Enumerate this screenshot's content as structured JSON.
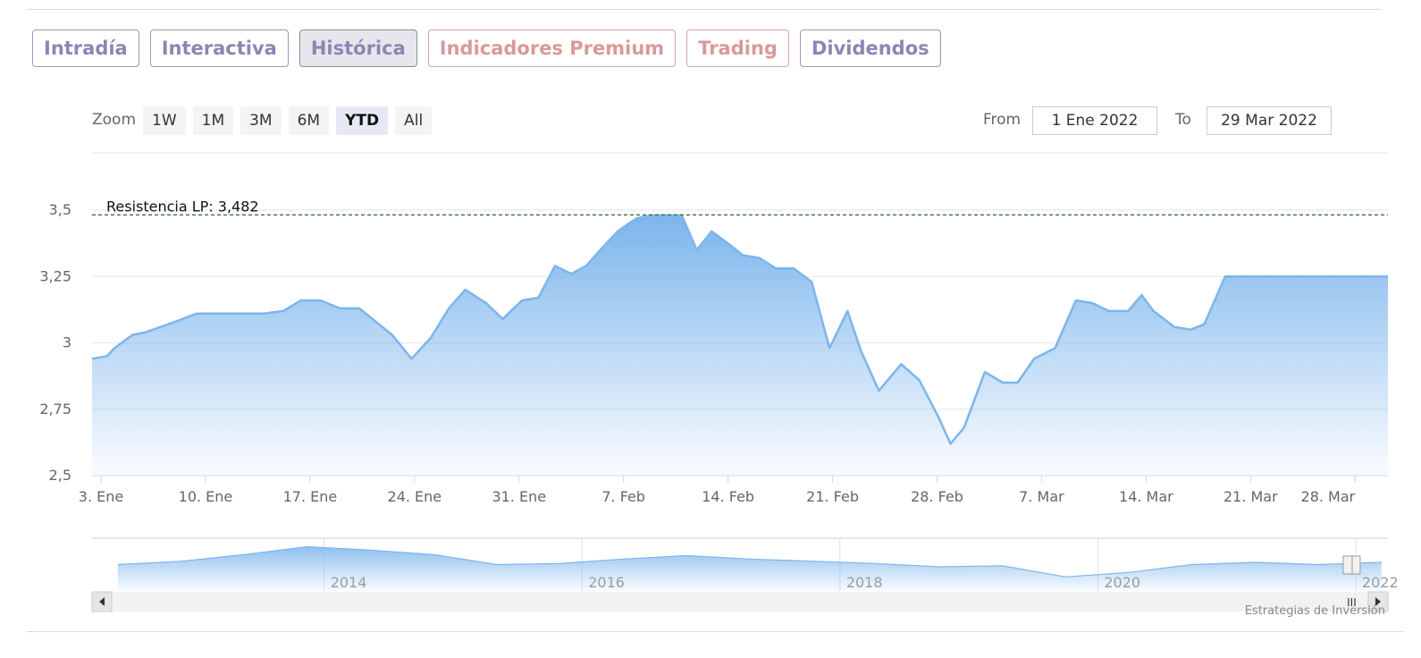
{
  "tabs": [
    {
      "label": "Intradía",
      "state": "normal"
    },
    {
      "label": "Interactiva",
      "state": "normal"
    },
    {
      "label": "Histórica",
      "state": "active"
    },
    {
      "label": "Indicadores Premium",
      "state": "premium"
    },
    {
      "label": "Trading",
      "state": "premium"
    },
    {
      "label": "Dividendos",
      "state": "normal"
    }
  ],
  "range_selector": {
    "zoom_label": "Zoom",
    "buttons": [
      "1W",
      "1M",
      "3M",
      "6M",
      "YTD",
      "All"
    ],
    "active_button": "YTD",
    "from_label": "From",
    "from_value": "1 Ene 2022",
    "to_label": "To",
    "to_value": "29 Mar 2022"
  },
  "colors": {
    "area_stroke": "#7cb5ec",
    "area_fill_top": "#7cb5ec",
    "resistance_line": "#2a6a2a",
    "tab_text": "#8b86b3",
    "tab_premium_text": "#d89a98"
  },
  "chart_data": {
    "type": "area",
    "title": "",
    "xlabel": "",
    "ylabel": "",
    "ylim": [
      2.5,
      3.5
    ],
    "yticks": [
      2.5,
      2.75,
      3,
      3.25,
      3.5
    ],
    "ytick_labels": [
      "2,5",
      "2,75",
      "3",
      "3,25",
      "3,5"
    ],
    "xticks": [
      {
        "label": "3. Ene",
        "day": 3
      },
      {
        "label": "10. Ene",
        "day": 10
      },
      {
        "label": "17. Ene",
        "day": 17
      },
      {
        "label": "24. Ene",
        "day": 24
      },
      {
        "label": "31. Ene",
        "day": 31
      },
      {
        "label": "7. Feb",
        "day": 38
      },
      {
        "label": "14. Feb",
        "day": 45
      },
      {
        "label": "21. Feb",
        "day": 52
      },
      {
        "label": "28. Feb",
        "day": 59
      },
      {
        "label": "7. Mar",
        "day": 66
      },
      {
        "label": "14. Mar",
        "day": 73
      },
      {
        "label": "21. Mar",
        "day": 80
      },
      {
        "label": "28. Mar",
        "day": 87
      }
    ],
    "x_domain": [
      2.4,
      89.2
    ],
    "series": [
      {
        "x": [
          2.4,
          3.4,
          3.9,
          5.1,
          6.0,
          7.0,
          8.0,
          9.4,
          10.4,
          11.7,
          12.7,
          13.9,
          15.2,
          16.4,
          17.7,
          19.0,
          20.3,
          21.4,
          22.5,
          23.8,
          25.1,
          26.3,
          27.4,
          28.8,
          29.9,
          31.2,
          32.3,
          33.4,
          34.5,
          35.5,
          36.6,
          37.6,
          38.9,
          39.9,
          40.9,
          41.9,
          42.9,
          43.9,
          45.1,
          46.0,
          47.1,
          48.2,
          49.4,
          50.6,
          51.8,
          53.0,
          53.9,
          55.1,
          56.6,
          57.8,
          59.1,
          59.9,
          60.8,
          62.2,
          63.4,
          64.4,
          65.5,
          66.9,
          68.3,
          69.4,
          70.5,
          71.8,
          72.7,
          73.5,
          74.9,
          76.0,
          76.9,
          78.3,
          79.5,
          80.4,
          81.7,
          82.6,
          83.6,
          84.9,
          86.0,
          87.2,
          89.2
        ],
        "values": [
          2.94,
          2.95,
          2.98,
          3.03,
          3.04,
          3.06,
          3.08,
          3.11,
          3.11,
          3.11,
          3.11,
          3.11,
          3.12,
          3.16,
          3.16,
          3.13,
          3.13,
          3.08,
          3.03,
          2.94,
          3.02,
          3.13,
          3.2,
          3.15,
          3.09,
          3.16,
          3.17,
          3.29,
          3.26,
          3.29,
          3.36,
          3.42,
          3.47,
          3.48,
          3.48,
          3.48,
          3.35,
          3.42,
          3.37,
          3.33,
          3.32,
          3.28,
          3.28,
          3.23,
          2.98,
          3.12,
          2.97,
          2.82,
          2.92,
          2.86,
          2.72,
          2.62,
          2.68,
          2.89,
          2.85,
          2.85,
          2.94,
          2.98,
          3.16,
          3.15,
          3.12,
          3.12,
          3.18,
          3.12,
          3.06,
          3.05,
          3.07,
          3.25,
          3.25,
          3.25,
          3.25,
          3.25,
          3.25,
          3.25,
          3.25,
          3.25,
          3.25
        ]
      }
    ],
    "annotation": {
      "label": "Resistencia LP: 3,482",
      "value": 3.482
    },
    "grid": true,
    "legend": "none"
  },
  "navigator": {
    "year_labels": [
      "2014",
      "2016",
      "2018",
      "2020",
      "2022"
    ],
    "year_positions": [
      2014,
      2016,
      2018,
      2020,
      2022
    ],
    "range": [
      2012.2,
      2022.25
    ],
    "values": [
      3.1,
      3.25,
      3.55,
      3.9,
      3.75,
      3.55,
      3.1,
      3.15,
      3.35,
      3.5,
      3.35,
      3.25,
      3.15,
      3.0,
      3.05,
      2.55,
      2.75,
      3.1,
      3.2,
      3.1,
      3.2
    ],
    "scroll_grip": "III"
  },
  "credit": "Estrategias de Inversión"
}
